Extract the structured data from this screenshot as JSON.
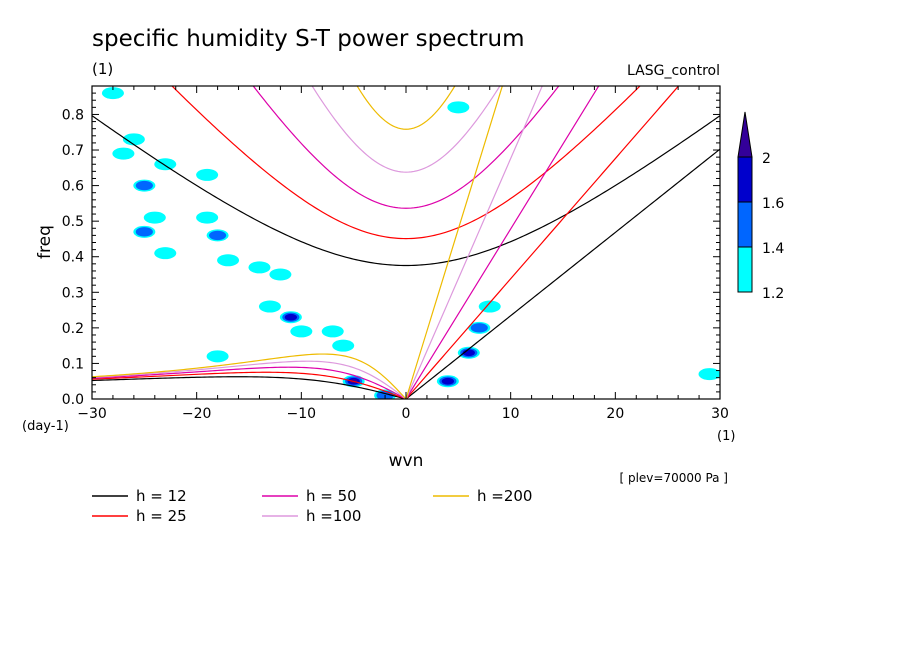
{
  "chart_data": {
    "type": "contour",
    "title": "specific humidity S-T power spectrum",
    "units_label": "(1)",
    "run_label": "LASG_control",
    "xlabel": "wvn",
    "ylabel": "freq",
    "x_unit": "(1)",
    "y_unit": "(day-1)",
    "level_note": "[ plev=70000 Pa ]",
    "xlim": [
      -30,
      30
    ],
    "ylim": [
      0,
      0.88
    ],
    "xticks": [
      "-30",
      "-20",
      "-10",
      "0",
      "10",
      "20",
      "30"
    ],
    "yticks": [
      "0.0",
      "0.1",
      "0.2",
      "0.3",
      "0.4",
      "0.5",
      "0.6",
      "0.7",
      "0.8"
    ],
    "colorbar": {
      "labels": [
        "1.2",
        "1.4",
        "1.6",
        "2"
      ],
      "colors": [
        "#00ffff",
        "#0066ff",
        "#0000cc",
        "#330099"
      ]
    },
    "dispersion_curves": [
      {
        "name": "h = 12",
        "h": 12,
        "color": "#000000"
      },
      {
        "name": "h = 25",
        "h": 25,
        "color": "#ff0000"
      },
      {
        "name": "h = 50",
        "h": 50,
        "color": "#dd00aa"
      },
      {
        "name": "h =100",
        "h": 100,
        "color": "#dd99dd"
      },
      {
        "name": "h =200",
        "h": 200,
        "color": "#eebb00"
      }
    ],
    "power_blobs": [
      {
        "x": -28,
        "y": 0.86,
        "level": 1
      },
      {
        "x": -26,
        "y": 0.73,
        "level": 1
      },
      {
        "x": -27,
        "y": 0.69,
        "level": 1
      },
      {
        "x": -23,
        "y": 0.66,
        "level": 1
      },
      {
        "x": -25,
        "y": 0.6,
        "level": 2
      },
      {
        "x": -19,
        "y": 0.63,
        "level": 1
      },
      {
        "x": -24,
        "y": 0.51,
        "level": 1
      },
      {
        "x": -19,
        "y": 0.51,
        "level": 1
      },
      {
        "x": -25,
        "y": 0.47,
        "level": 2
      },
      {
        "x": -18,
        "y": 0.46,
        "level": 2
      },
      {
        "x": -23,
        "y": 0.41,
        "level": 1
      },
      {
        "x": -17,
        "y": 0.39,
        "level": 1
      },
      {
        "x": -14,
        "y": 0.37,
        "level": 1
      },
      {
        "x": -12,
        "y": 0.35,
        "level": 1
      },
      {
        "x": -13,
        "y": 0.26,
        "level": 1
      },
      {
        "x": -11,
        "y": 0.23,
        "level": 3
      },
      {
        "x": -10,
        "y": 0.19,
        "level": 1
      },
      {
        "x": -7,
        "y": 0.19,
        "level": 1
      },
      {
        "x": -6,
        "y": 0.15,
        "level": 1
      },
      {
        "x": -5,
        "y": 0.05,
        "level": 4
      },
      {
        "x": -2,
        "y": 0.01,
        "level": 2
      },
      {
        "x": 4,
        "y": 0.05,
        "level": 3
      },
      {
        "x": 6,
        "y": 0.13,
        "level": 3
      },
      {
        "x": 7,
        "y": 0.2,
        "level": 2
      },
      {
        "x": 8,
        "y": 0.26,
        "level": 1
      },
      {
        "x": 5,
        "y": 0.82,
        "level": 1
      },
      {
        "x": -18,
        "y": 0.12,
        "level": 1
      },
      {
        "x": 29,
        "y": 0.07,
        "level": 1
      }
    ]
  },
  "legend": {
    "h12": "h = 12",
    "h25": "h = 25",
    "h50": "h = 50",
    "h100": "h =100",
    "h200": "h =200"
  }
}
